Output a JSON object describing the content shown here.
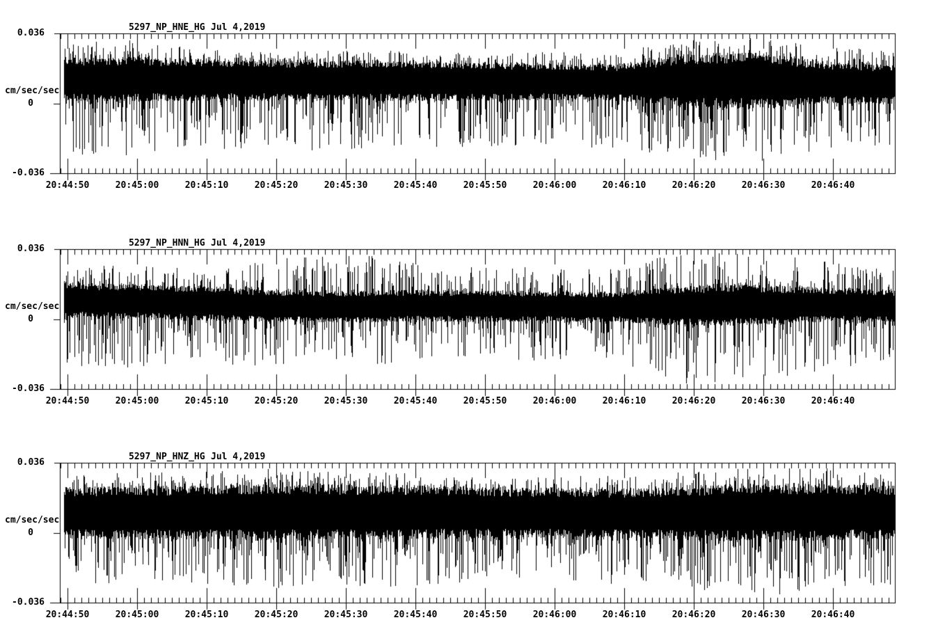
{
  "page": {
    "background": "#ffffff",
    "foreground": "#000000"
  },
  "chart_data": [
    {
      "type": "line",
      "station_channel": "5297_NP_HNE_HG",
      "date_label": "Jul 4,2019",
      "title": "5297_NP_HNE_HG  Jul 4,2019",
      "ylabel": "cm/sec/sec",
      "y_tick_labels": [
        "0.036",
        "0",
        "-0.036"
      ],
      "ylim": [
        -0.036,
        0.036
      ],
      "x_tick_labels": [
        "20:44:50",
        "20:45:00",
        "20:45:10",
        "20:45:20",
        "20:45:30",
        "20:45:40",
        "20:45:50",
        "20:46:00",
        "20:46:10",
        "20:46:20",
        "20:46:30",
        "20:46:40"
      ],
      "x_major_interval_seconds": 10,
      "x_minor_interval_seconds": 1,
      "duration_seconds": 120,
      "grid": false,
      "legend": false,
      "description": "Dense black strong-motion accelerogram noise trace; amplitude burst near 20:46:20",
      "trace": {
        "seed": 20190704,
        "envelope_t_seconds": [
          0,
          10,
          20,
          30,
          40,
          50,
          60,
          70,
          80,
          90,
          100,
          110,
          120
        ],
        "band_hi": [
          0.0224,
          0.0224,
          0.0215,
          0.021,
          0.021,
          0.0205,
          0.02,
          0.0195,
          0.019,
          0.0235,
          0.0245,
          0.02,
          0.019
        ],
        "band_lo": [
          0.003,
          0.0028,
          0.003,
          0.003,
          0.003,
          0.003,
          0.003,
          0.0032,
          0.003,
          0.0,
          -0.0005,
          0.0015,
          0.0015
        ],
        "peak_hi": [
          0.031,
          0.033,
          0.028,
          0.027,
          0.0285,
          0.027,
          0.026,
          0.027,
          0.0265,
          0.033,
          0.034,
          0.03,
          0.0265
        ],
        "peak_lo": [
          -0.026,
          -0.027,
          -0.023,
          -0.024,
          -0.0245,
          -0.023,
          -0.022,
          -0.023,
          -0.0225,
          -0.029,
          -0.03,
          -0.025,
          -0.022
        ]
      }
    },
    {
      "type": "line",
      "station_channel": "5297_NP_HNN_HG",
      "date_label": "Jul 4,2019",
      "title": "5297_NP_HNN_HG  Jul 4,2019",
      "ylabel": "cm/sec/sec",
      "y_tick_labels": [
        "0.036",
        "0",
        "-0.036"
      ],
      "ylim": [
        -0.036,
        0.036
      ],
      "x_tick_labels": [
        "20:44:50",
        "20:45:00",
        "20:45:10",
        "20:45:20",
        "20:45:30",
        "20:45:40",
        "20:45:50",
        "20:46:00",
        "20:46:10",
        "20:46:20",
        "20:46:30",
        "20:46:40"
      ],
      "x_major_interval_seconds": 10,
      "x_minor_interval_seconds": 1,
      "duration_seconds": 120,
      "grid": false,
      "legend": false,
      "description": "Dense black strong-motion accelerogram noise trace; strongest burst near 20:46:20, isolated tall spikes near 20:45:26",
      "trace": {
        "seed": 20190705,
        "envelope_t_seconds": [
          0,
          10,
          20,
          30,
          40,
          50,
          60,
          70,
          80,
          90,
          100,
          110,
          120
        ],
        "band_hi": [
          0.0174,
          0.017,
          0.016,
          0.014,
          0.0135,
          0.014,
          0.014,
          0.0135,
          0.013,
          0.016,
          0.0165,
          0.015,
          0.014
        ],
        "band_lo": [
          0.002,
          0.0018,
          0.001,
          0.0,
          -0.0005,
          0.0,
          0.0,
          0.0,
          0.0,
          -0.002,
          -0.0015,
          0.0,
          0.0
        ],
        "peak_hi": [
          0.027,
          0.028,
          0.026,
          0.03,
          0.0355,
          0.03,
          0.027,
          0.028,
          0.026,
          0.036,
          0.035,
          0.03,
          0.025
        ],
        "peak_lo": [
          -0.024,
          -0.025,
          -0.023,
          -0.024,
          -0.025,
          -0.023,
          -0.022,
          -0.023,
          -0.022,
          -0.033,
          -0.032,
          -0.026,
          -0.022
        ]
      }
    },
    {
      "type": "line",
      "station_channel": "5297_NP_HNZ_HG",
      "date_label": "Jul 4,2019",
      "title": "5297_NP_HNZ_HG  Jul 4,2019",
      "ylabel": "cm/sec/sec",
      "y_tick_labels": [
        "0.036",
        "0",
        "-0.036"
      ],
      "ylim": [
        -0.036,
        0.036
      ],
      "x_tick_labels": [
        "20:44:50",
        "20:45:00",
        "20:45:10",
        "20:45:20",
        "20:45:30",
        "20:45:40",
        "20:45:50",
        "20:46:00",
        "20:46:10",
        "20:46:20",
        "20:46:30",
        "20:46:40"
      ],
      "x_major_interval_seconds": 10,
      "x_minor_interval_seconds": 1,
      "duration_seconds": 120,
      "grid": false,
      "legend": false,
      "description": "Dense black strong-motion accelerogram noise trace; fatter uniform band, larger excursions after 20:46:15",
      "trace": {
        "seed": 20190706,
        "envelope_t_seconds": [
          0,
          10,
          20,
          30,
          40,
          50,
          60,
          70,
          80,
          90,
          100,
          110,
          120
        ],
        "band_hi": [
          0.022,
          0.0225,
          0.0225,
          0.0235,
          0.023,
          0.0228,
          0.022,
          0.0215,
          0.021,
          0.022,
          0.0235,
          0.0235,
          0.0225
        ],
        "band_lo": [
          -0.001,
          -0.0012,
          -0.001,
          -0.0016,
          -0.0012,
          -0.001,
          -0.0008,
          -0.0008,
          -0.0008,
          -0.0015,
          -0.002,
          -0.0018,
          -0.0012
        ],
        "peak_hi": [
          0.03,
          0.031,
          0.032,
          0.0335,
          0.032,
          0.031,
          0.029,
          0.029,
          0.03,
          0.032,
          0.034,
          0.0335,
          0.031
        ],
        "peak_lo": [
          -0.026,
          -0.027,
          -0.029,
          -0.031,
          -0.029,
          -0.028,
          -0.026,
          -0.026,
          -0.027,
          -0.03,
          -0.032,
          -0.031,
          -0.028
        ]
      }
    }
  ]
}
